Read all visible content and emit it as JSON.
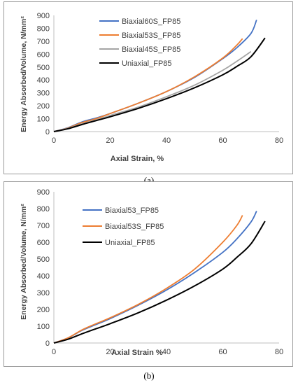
{
  "colors": {
    "blue": "#4472c4",
    "orange": "#ed7d31",
    "gray": "#a5a5a5",
    "black": "#000000"
  },
  "captions": {
    "a": "(a)",
    "b": "(b)"
  },
  "chart_data": [
    {
      "type": "line",
      "title": "",
      "xlabel": "Axial Strain, %",
      "ylabel": "Energy Absorbed/Volume, N/mm²",
      "xlim": [
        0,
        80
      ],
      "ylim": [
        0,
        900
      ],
      "xticks": [
        0,
        20,
        40,
        60,
        80
      ],
      "yticks": [
        0,
        100,
        200,
        300,
        400,
        500,
        600,
        700,
        800,
        900
      ],
      "legend_position": "top-left",
      "grid": false,
      "series": [
        {
          "name": "Biaxial60S_FP85",
          "color": "#4472c4",
          "x": [
            0,
            5,
            10,
            15,
            20,
            30,
            40,
            50,
            60,
            65,
            70,
            72
          ],
          "y": [
            0,
            30,
            75,
            105,
            140,
            220,
            310,
            420,
            565,
            650,
            760,
            865
          ]
        },
        {
          "name": "Biaxial53S_FP85",
          "color": "#ed7d31",
          "x": [
            0,
            5,
            10,
            15,
            20,
            30,
            40,
            50,
            60,
            65,
            67
          ],
          "y": [
            0,
            28,
            70,
            100,
            140,
            220,
            310,
            425,
            570,
            670,
            720
          ]
        },
        {
          "name": "Biaxial45S_FP85",
          "color": "#a5a5a5",
          "x": [
            0,
            5,
            10,
            15,
            20,
            30,
            40,
            50,
            60,
            65,
            70
          ],
          "y": [
            0,
            25,
            60,
            90,
            125,
            190,
            270,
            360,
            475,
            545,
            620
          ]
        },
        {
          "name": "Uniaxial_FP85",
          "color": "#000000",
          "x": [
            0,
            5,
            10,
            15,
            20,
            30,
            40,
            50,
            60,
            65,
            70,
            75
          ],
          "y": [
            0,
            22,
            55,
            85,
            115,
            180,
            255,
            340,
            440,
            505,
            580,
            725
          ]
        }
      ]
    },
    {
      "type": "line",
      "title": "",
      "xlabel": "Axial Strain %",
      "ylabel": "Energy Absorbed/Volume, N/mm²",
      "xlim": [
        0,
        80
      ],
      "ylim": [
        0,
        900
      ],
      "xticks": [
        0,
        20,
        40,
        60,
        80
      ],
      "yticks": [
        0,
        100,
        200,
        300,
        400,
        500,
        600,
        700,
        800,
        900
      ],
      "legend_position": "top-left",
      "grid": false,
      "series": [
        {
          "name": "Biaxial53_FP85",
          "color": "#4472c4",
          "x": [
            0,
            5,
            10,
            15,
            20,
            30,
            40,
            50,
            60,
            65,
            70,
            72
          ],
          "y": [
            0,
            30,
            75,
            110,
            145,
            225,
            315,
            420,
            540,
            620,
            720,
            785
          ]
        },
        {
          "name": "Biaxial53S_FP85",
          "color": "#ed7d31",
          "x": [
            0,
            5,
            10,
            15,
            20,
            30,
            40,
            50,
            60,
            65,
            67
          ],
          "y": [
            0,
            30,
            78,
            115,
            150,
            230,
            325,
            440,
            600,
            700,
            760
          ]
        },
        {
          "name": "Uniaxial_FP85",
          "color": "#000000",
          "x": [
            0,
            5,
            10,
            15,
            20,
            30,
            40,
            50,
            60,
            65,
            70,
            75
          ],
          "y": [
            0,
            22,
            55,
            85,
            115,
            180,
            255,
            340,
            440,
            510,
            590,
            725
          ]
        }
      ]
    }
  ]
}
